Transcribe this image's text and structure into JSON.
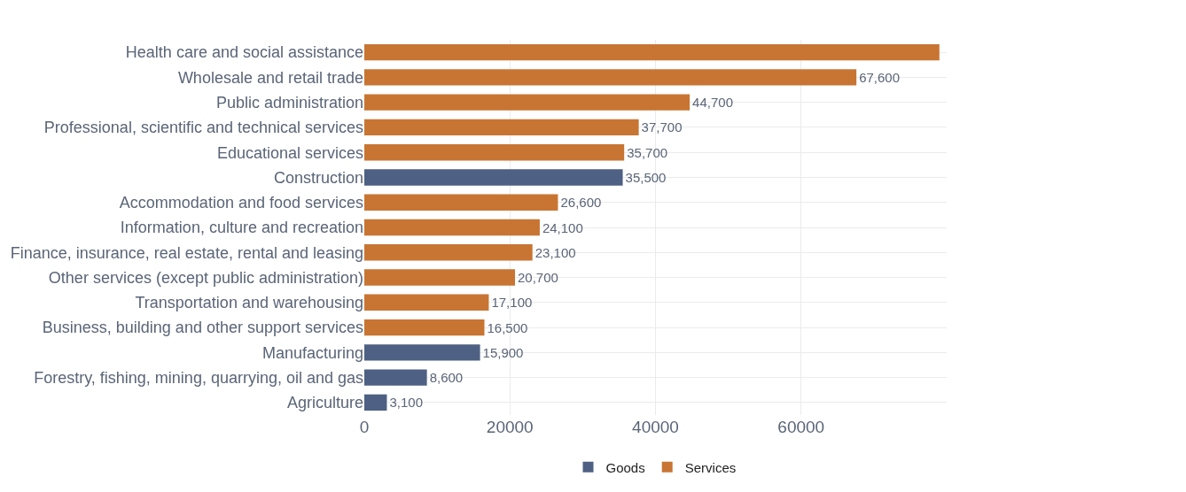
{
  "chart_data": {
    "type": "bar",
    "orientation": "horizontal",
    "stacked": true,
    "categories": [
      "Health care and social assistance",
      "Wholesale and retail trade",
      "Public administration",
      "Professional, scientific and technical services",
      "Educational services",
      "Construction",
      "Accommodation and food services",
      "Information, culture and recreation",
      "Finance, insurance, real estate, rental and leasing",
      "Other services (except public administration)",
      "Transportation and warehousing",
      "Business, building and other support services",
      "Manufacturing",
      "Forestry, fishing, mining, quarrying, oil and gas",
      "Agriculture"
    ],
    "series": [
      {
        "name": "Goods",
        "color": "#4e6083",
        "values": [
          null,
          null,
          null,
          null,
          null,
          35500,
          null,
          null,
          null,
          null,
          null,
          null,
          15900,
          8600,
          3100
        ],
        "value_labels": [
          null,
          null,
          null,
          null,
          null,
          "35,500",
          null,
          null,
          null,
          null,
          null,
          null,
          "15,900",
          "8,600",
          "3,100"
        ]
      },
      {
        "name": "Services",
        "color": "#c87533",
        "values": [
          79000,
          67600,
          44700,
          37700,
          35700,
          null,
          26600,
          24100,
          23100,
          20700,
          17100,
          16500,
          null,
          null,
          null
        ],
        "value_labels": [
          null,
          "67,600",
          "44,700",
          "37,700",
          "35,700",
          null,
          "26,600",
          "24,100",
          "23,100",
          "20,700",
          "17,100",
          "16,500",
          null,
          null,
          null
        ]
      }
    ],
    "xlim": [
      0,
      80000
    ],
    "xticks": [
      0,
      20000,
      40000,
      60000
    ],
    "grid": true,
    "legend": "bottom"
  }
}
